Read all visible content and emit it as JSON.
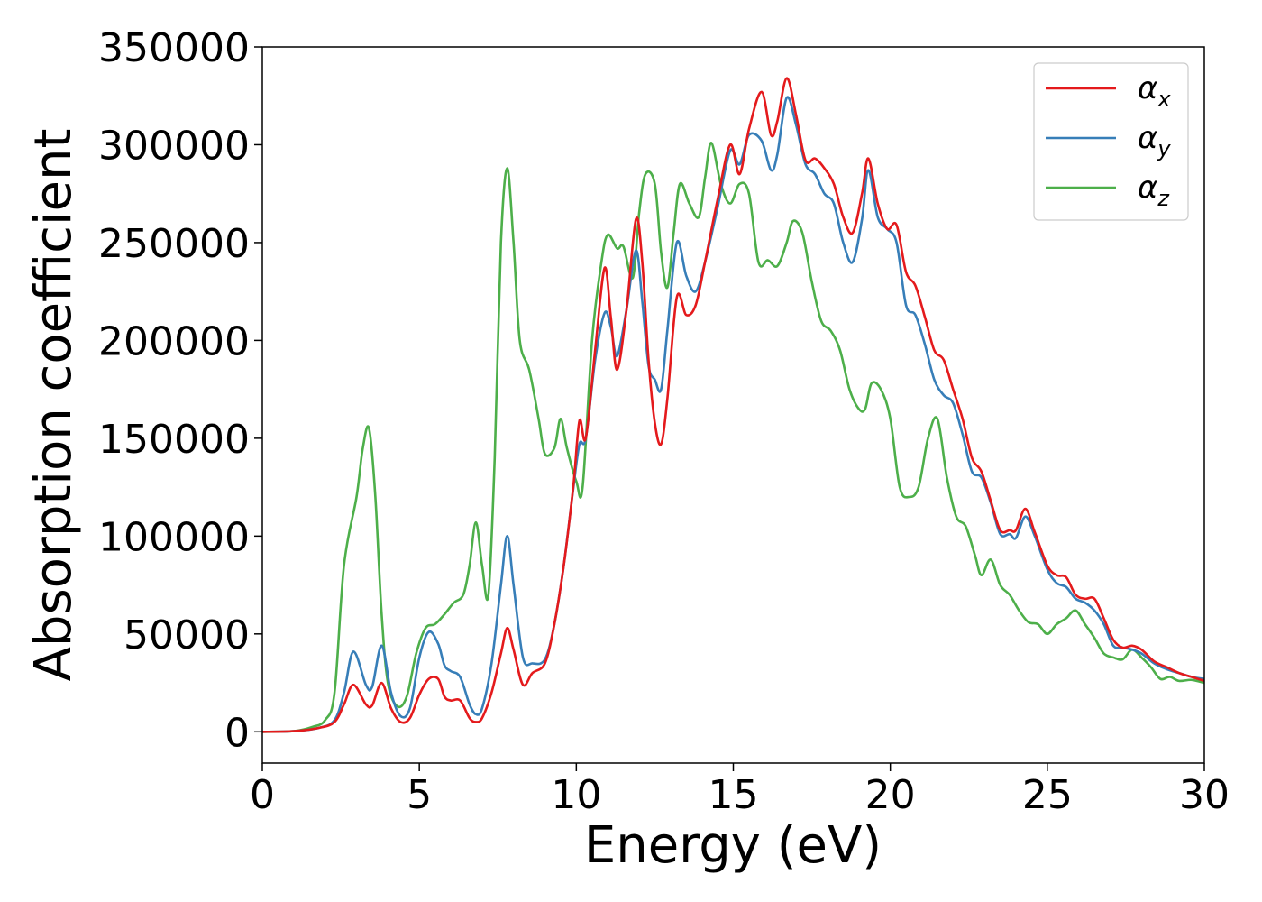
{
  "chart_data": {
    "type": "line",
    "title": "",
    "xlabel": "Energy (eV)",
    "ylabel": "Absorption coefficient",
    "xlim": [
      0,
      30
    ],
    "ylim": [
      -16000,
      350000
    ],
    "xticks": [
      0,
      5,
      10,
      15,
      20,
      25,
      30
    ],
    "xtick_labels": [
      "0",
      "5",
      "10",
      "15",
      "20",
      "25",
      "30"
    ],
    "yticks": [
      0,
      50000,
      100000,
      150000,
      200000,
      250000,
      300000,
      350000
    ],
    "ytick_labels": [
      "0",
      "50000",
      "100000",
      "150000",
      "200000",
      "250000",
      "300000",
      "350000"
    ],
    "grid": false,
    "legend_position": "top-right",
    "series": [
      {
        "name": "α",
        "subscript": "x",
        "color": "#e41a1c",
        "points": [
          [
            0,
            0
          ],
          [
            1,
            300
          ],
          [
            1.8,
            2000
          ],
          [
            2.3,
            5000
          ],
          [
            2.6,
            14000
          ],
          [
            2.9,
            24000
          ],
          [
            3.3,
            14000
          ],
          [
            3.5,
            13500
          ],
          [
            3.8,
            25000
          ],
          [
            4.1,
            12000
          ],
          [
            4.4,
            5000
          ],
          [
            4.7,
            7000
          ],
          [
            5.0,
            19000
          ],
          [
            5.3,
            27000
          ],
          [
            5.6,
            27000
          ],
          [
            5.8,
            18000
          ],
          [
            6.0,
            16000
          ],
          [
            6.3,
            16000
          ],
          [
            6.6,
            7000
          ],
          [
            6.8,
            5000
          ],
          [
            7.0,
            7000
          ],
          [
            7.3,
            20000
          ],
          [
            7.6,
            40000
          ],
          [
            7.8,
            53000
          ],
          [
            8.0,
            42000
          ],
          [
            8.3,
            24000
          ],
          [
            8.6,
            30000
          ],
          [
            9.0,
            35000
          ],
          [
            9.3,
            55000
          ],
          [
            9.6,
            85000
          ],
          [
            9.9,
            125000
          ],
          [
            10.1,
            159000
          ],
          [
            10.3,
            150000
          ],
          [
            10.6,
            195000
          ],
          [
            10.9,
            237000
          ],
          [
            11.1,
            212000
          ],
          [
            11.3,
            185000
          ],
          [
            11.6,
            216000
          ],
          [
            11.9,
            262000
          ],
          [
            12.1,
            240000
          ],
          [
            12.3,
            190000
          ],
          [
            12.5,
            158000
          ],
          [
            12.7,
            147000
          ],
          [
            12.9,
            170000
          ],
          [
            13.2,
            222000
          ],
          [
            13.5,
            213000
          ],
          [
            13.8,
            218000
          ],
          [
            14.1,
            240000
          ],
          [
            14.5,
            272000
          ],
          [
            14.9,
            300000
          ],
          [
            15.2,
            285000
          ],
          [
            15.5,
            308000
          ],
          [
            15.9,
            327000
          ],
          [
            16.2,
            305000
          ],
          [
            16.4,
            312000
          ],
          [
            16.7,
            334000
          ],
          [
            17.0,
            315000
          ],
          [
            17.3,
            292000
          ],
          [
            17.6,
            293000
          ],
          [
            17.9,
            288000
          ],
          [
            18.2,
            280000
          ],
          [
            18.5,
            263000
          ],
          [
            18.8,
            255000
          ],
          [
            19.1,
            275000
          ],
          [
            19.3,
            293000
          ],
          [
            19.6,
            270000
          ],
          [
            19.9,
            257000
          ],
          [
            20.2,
            259000
          ],
          [
            20.5,
            235000
          ],
          [
            20.8,
            228000
          ],
          [
            21.1,
            212000
          ],
          [
            21.4,
            195000
          ],
          [
            21.7,
            190000
          ],
          [
            22.0,
            175000
          ],
          [
            22.3,
            160000
          ],
          [
            22.6,
            140000
          ],
          [
            22.9,
            133000
          ],
          [
            23.2,
            118000
          ],
          [
            23.5,
            103000
          ],
          [
            23.8,
            103000
          ],
          [
            24.0,
            103000
          ],
          [
            24.3,
            114000
          ],
          [
            24.6,
            102000
          ],
          [
            25.0,
            85000
          ],
          [
            25.3,
            80000
          ],
          [
            25.6,
            79000
          ],
          [
            25.9,
            70000
          ],
          [
            26.2,
            68000
          ],
          [
            26.5,
            68000
          ],
          [
            26.8,
            58000
          ],
          [
            27.1,
            47000
          ],
          [
            27.4,
            43000
          ],
          [
            27.7,
            44000
          ],
          [
            28.0,
            42000
          ],
          [
            28.4,
            36000
          ],
          [
            28.8,
            33000
          ],
          [
            29.2,
            30000
          ],
          [
            29.6,
            28000
          ],
          [
            30,
            26000
          ]
        ]
      },
      {
        "name": "α",
        "subscript": "y",
        "color": "#377eb8",
        "points": [
          [
            0,
            0
          ],
          [
            1,
            300
          ],
          [
            1.8,
            2000
          ],
          [
            2.3,
            6000
          ],
          [
            2.6,
            20000
          ],
          [
            2.9,
            41000
          ],
          [
            3.3,
            24000
          ],
          [
            3.5,
            23000
          ],
          [
            3.8,
            44000
          ],
          [
            4.1,
            20000
          ],
          [
            4.4,
            8000
          ],
          [
            4.7,
            12000
          ],
          [
            5.0,
            38000
          ],
          [
            5.3,
            51000
          ],
          [
            5.6,
            45000
          ],
          [
            5.8,
            34000
          ],
          [
            6.0,
            31000
          ],
          [
            6.3,
            28000
          ],
          [
            6.6,
            14000
          ],
          [
            6.8,
            9000
          ],
          [
            7.0,
            12000
          ],
          [
            7.3,
            35000
          ],
          [
            7.6,
            75000
          ],
          [
            7.8,
            100000
          ],
          [
            8.0,
            75000
          ],
          [
            8.3,
            38000
          ],
          [
            8.6,
            35000
          ],
          [
            9.0,
            37000
          ],
          [
            9.3,
            55000
          ],
          [
            9.6,
            85000
          ],
          [
            9.9,
            124000
          ],
          [
            10.1,
            147000
          ],
          [
            10.3,
            150000
          ],
          [
            10.6,
            190000
          ],
          [
            10.9,
            214000
          ],
          [
            11.1,
            207000
          ],
          [
            11.3,
            192000
          ],
          [
            11.6,
            216000
          ],
          [
            11.9,
            246000
          ],
          [
            12.1,
            220000
          ],
          [
            12.3,
            187000
          ],
          [
            12.5,
            180000
          ],
          [
            12.7,
            175000
          ],
          [
            12.9,
            205000
          ],
          [
            13.2,
            250000
          ],
          [
            13.5,
            233000
          ],
          [
            13.8,
            225000
          ],
          [
            14.1,
            240000
          ],
          [
            14.5,
            268000
          ],
          [
            14.9,
            297000
          ],
          [
            15.2,
            290000
          ],
          [
            15.5,
            305000
          ],
          [
            15.9,
            302000
          ],
          [
            16.2,
            287000
          ],
          [
            16.4,
            295000
          ],
          [
            16.7,
            324000
          ],
          [
            17.0,
            310000
          ],
          [
            17.3,
            290000
          ],
          [
            17.6,
            285000
          ],
          [
            17.9,
            275000
          ],
          [
            18.2,
            270000
          ],
          [
            18.5,
            250000
          ],
          [
            18.8,
            240000
          ],
          [
            19.1,
            262000
          ],
          [
            19.3,
            287000
          ],
          [
            19.6,
            263000
          ],
          [
            19.9,
            257000
          ],
          [
            20.2,
            250000
          ],
          [
            20.5,
            218000
          ],
          [
            20.8,
            213000
          ],
          [
            21.1,
            198000
          ],
          [
            21.4,
            180000
          ],
          [
            21.7,
            172000
          ],
          [
            22.0,
            168000
          ],
          [
            22.3,
            152000
          ],
          [
            22.6,
            133000
          ],
          [
            22.9,
            130000
          ],
          [
            23.2,
            117000
          ],
          [
            23.5,
            101000
          ],
          [
            23.8,
            101000
          ],
          [
            24.0,
            99000
          ],
          [
            24.3,
            110000
          ],
          [
            24.6,
            100000
          ],
          [
            25.0,
            83000
          ],
          [
            25.3,
            76000
          ],
          [
            25.6,
            74000
          ],
          [
            25.9,
            68000
          ],
          [
            26.2,
            66000
          ],
          [
            26.5,
            62000
          ],
          [
            26.8,
            55000
          ],
          [
            27.1,
            44000
          ],
          [
            27.4,
            43000
          ],
          [
            27.7,
            42000
          ],
          [
            28.0,
            40000
          ],
          [
            28.4,
            35000
          ],
          [
            28.8,
            32000
          ],
          [
            29.2,
            30000
          ],
          [
            29.6,
            28000
          ],
          [
            30,
            27000
          ]
        ]
      },
      {
        "name": "α",
        "subscript": "z",
        "color": "#4daf4a",
        "points": [
          [
            0,
            0
          ],
          [
            1,
            300
          ],
          [
            1.6,
            2500
          ],
          [
            2.0,
            6000
          ],
          [
            2.3,
            20000
          ],
          [
            2.6,
            85000
          ],
          [
            3.0,
            120000
          ],
          [
            3.2,
            145000
          ],
          [
            3.4,
            155000
          ],
          [
            3.6,
            120000
          ],
          [
            3.8,
            60000
          ],
          [
            4.0,
            25000
          ],
          [
            4.3,
            13000
          ],
          [
            4.6,
            18000
          ],
          [
            4.9,
            40000
          ],
          [
            5.2,
            53000
          ],
          [
            5.5,
            55000
          ],
          [
            5.8,
            60000
          ],
          [
            6.1,
            66000
          ],
          [
            6.4,
            70000
          ],
          [
            6.6,
            85000
          ],
          [
            6.8,
            107000
          ],
          [
            7.0,
            85000
          ],
          [
            7.2,
            70000
          ],
          [
            7.4,
            140000
          ],
          [
            7.6,
            250000
          ],
          [
            7.8,
            288000
          ],
          [
            8.0,
            250000
          ],
          [
            8.2,
            200000
          ],
          [
            8.5,
            185000
          ],
          [
            8.8,
            160000
          ],
          [
            9.0,
            142000
          ],
          [
            9.3,
            145000
          ],
          [
            9.5,
            160000
          ],
          [
            9.7,
            145000
          ],
          [
            10.0,
            128000
          ],
          [
            10.2,
            125000
          ],
          [
            10.5,
            200000
          ],
          [
            10.8,
            240000
          ],
          [
            11.0,
            254000
          ],
          [
            11.3,
            247000
          ],
          [
            11.5,
            248000
          ],
          [
            11.8,
            232000
          ],
          [
            12.0,
            265000
          ],
          [
            12.2,
            285000
          ],
          [
            12.5,
            280000
          ],
          [
            12.7,
            245000
          ],
          [
            12.9,
            227000
          ],
          [
            13.1,
            255000
          ],
          [
            13.3,
            280000
          ],
          [
            13.6,
            270000
          ],
          [
            13.9,
            263000
          ],
          [
            14.1,
            283000
          ],
          [
            14.3,
            301000
          ],
          [
            14.6,
            280000
          ],
          [
            14.9,
            270000
          ],
          [
            15.2,
            280000
          ],
          [
            15.5,
            275000
          ],
          [
            15.8,
            240000
          ],
          [
            16.1,
            241000
          ],
          [
            16.4,
            238000
          ],
          [
            16.7,
            250000
          ],
          [
            16.9,
            261000
          ],
          [
            17.2,
            255000
          ],
          [
            17.5,
            230000
          ],
          [
            17.8,
            210000
          ],
          [
            18.1,
            205000
          ],
          [
            18.4,
            195000
          ],
          [
            18.7,
            175000
          ],
          [
            19.0,
            165000
          ],
          [
            19.2,
            165000
          ],
          [
            19.4,
            178000
          ],
          [
            19.7,
            175000
          ],
          [
            20.0,
            160000
          ],
          [
            20.3,
            125000
          ],
          [
            20.6,
            120000
          ],
          [
            20.9,
            125000
          ],
          [
            21.2,
            150000
          ],
          [
            21.5,
            160000
          ],
          [
            21.8,
            130000
          ],
          [
            22.1,
            110000
          ],
          [
            22.4,
            105000
          ],
          [
            22.7,
            90000
          ],
          [
            22.9,
            80000
          ],
          [
            23.2,
            88000
          ],
          [
            23.5,
            75000
          ],
          [
            23.8,
            70000
          ],
          [
            24.1,
            62000
          ],
          [
            24.4,
            56000
          ],
          [
            24.7,
            55000
          ],
          [
            25.0,
            50000
          ],
          [
            25.3,
            55000
          ],
          [
            25.6,
            58000
          ],
          [
            25.9,
            62000
          ],
          [
            26.2,
            55000
          ],
          [
            26.5,
            48000
          ],
          [
            26.8,
            40000
          ],
          [
            27.1,
            38000
          ],
          [
            27.4,
            37000
          ],
          [
            27.7,
            42000
          ],
          [
            28.0,
            38000
          ],
          [
            28.3,
            33000
          ],
          [
            28.6,
            27000
          ],
          [
            28.9,
            28000
          ],
          [
            29.2,
            26000
          ],
          [
            29.6,
            26500
          ],
          [
            30,
            25000
          ]
        ]
      }
    ]
  }
}
